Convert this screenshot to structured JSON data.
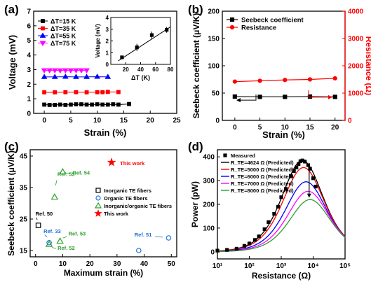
{
  "panel_labels": [
    "(a)",
    "(b)",
    "(c)",
    "(d)"
  ],
  "chart_data": [
    {
      "panel": "(a)",
      "type": "scatter",
      "xlabel": "Strain (%)",
      "ylabel": "Voltage (mV)",
      "xlim": [
        -2,
        25
      ],
      "ylim": [
        0,
        7
      ],
      "xticks": [
        0,
        5,
        10,
        15,
        20,
        25
      ],
      "yticks": [
        0,
        1,
        2,
        3,
        4,
        5,
        6,
        7
      ],
      "legend_position": "upper-left",
      "series": [
        {
          "name": "ΔT=15 K",
          "color": "#000000",
          "marker": "square",
          "x": [
            0,
            1,
            2,
            3,
            4,
            5,
            6,
            7,
            8,
            9,
            10,
            11,
            12,
            13,
            14,
            16
          ],
          "y": [
            0.6,
            0.58,
            0.58,
            0.6,
            0.58,
            0.6,
            0.62,
            0.62,
            0.6,
            0.6,
            0.62,
            0.6,
            0.6,
            0.62,
            0.6,
            0.64
          ]
        },
        {
          "name": "ΔT=35 K",
          "color": "#ff0000",
          "marker": "square",
          "x": [
            0,
            2,
            4,
            6,
            8,
            10,
            11,
            12,
            14
          ],
          "y": [
            1.44,
            1.44,
            1.45,
            1.45,
            1.44,
            1.45,
            1.45,
            1.47,
            1.46
          ]
        },
        {
          "name": "ΔT=55 K",
          "color": "#0000ff",
          "marker": "triangle",
          "x": [
            0,
            2,
            4,
            6,
            8,
            10,
            12
          ],
          "y": [
            2.5,
            2.5,
            2.51,
            2.5,
            2.5,
            2.51,
            2.5
          ]
        },
        {
          "name": "ΔT=75 K",
          "color": "#ff00ff",
          "marker": "triangle-down",
          "x": [
            0,
            1,
            2,
            3,
            4,
            5,
            6,
            7,
            8
          ],
          "y": [
            2.95,
            2.95,
            2.95,
            2.94,
            2.95,
            2.95,
            2.95,
            2.95,
            2.95
          ]
        }
      ],
      "inset": {
        "xlabel": "ΔT (K)",
        "ylabel": "Voltage (mV)",
        "xlim": [
          0,
          80
        ],
        "ylim": [
          0,
          4
        ],
        "xticks": [
          20,
          40,
          60,
          80
        ],
        "yticks": [
          0,
          1,
          2,
          3,
          4
        ],
        "x": [
          15,
          35,
          55,
          75
        ],
        "y": [
          0.6,
          1.45,
          2.5,
          2.95
        ],
        "err": [
          0.1,
          0.3,
          0.3,
          0.25
        ],
        "fit": {
          "x": [
            10,
            80
          ],
          "y": [
            0.3,
            3.2
          ]
        }
      }
    },
    {
      "panel": "(b)",
      "type": "line",
      "xlabel": "Strain (%)",
      "ylabel": "Seebeck coefficient (μV/K)",
      "ylabel_right": "Resistance (Ω)",
      "xlim": [
        -2.5,
        22
      ],
      "ylim": [
        0,
        200
      ],
      "ylim_right": [
        0,
        4000
      ],
      "xticks": [
        0,
        5,
        10,
        15,
        20
      ],
      "yticks": [
        0,
        50,
        100,
        150,
        200
      ],
      "yticks_right": [
        0,
        1000,
        2000,
        3000,
        4000
      ],
      "legend_position": "top-left",
      "series": [
        {
          "name": "Seebeck coefficient",
          "axis": "left",
          "color": "#000000",
          "marker": "square",
          "x": [
            0,
            5,
            10,
            15,
            20
          ],
          "y": [
            43.5,
            43,
            43,
            43.5,
            43
          ]
        },
        {
          "name": "Resistance",
          "axis": "right",
          "color": "#ff0000",
          "marker": "circle",
          "x": [
            0,
            5,
            10,
            15,
            20
          ],
          "y": [
            1420,
            1450,
            1480,
            1500,
            1540
          ]
        }
      ]
    },
    {
      "panel": "(c)",
      "type": "scatter",
      "title": "This work",
      "xlabel": "Maximum strain (%)",
      "ylabel": "Seebeck coefficient (μV/K)",
      "xlim": [
        -2,
        52
      ],
      "ylim": [
        13,
        47
      ],
      "xticks": [
        0,
        10,
        20,
        30,
        40,
        50
      ],
      "yticks": [
        15,
        25,
        35,
        45
      ],
      "legend_position": "center-right",
      "legend": [
        {
          "name": "Inorganic TE fibers",
          "color": "#000000",
          "marker": "square"
        },
        {
          "name": "Organic TE fibers",
          "color": "#1f6fd6",
          "marker": "circle"
        },
        {
          "name": "Inorganic/organic TE fibers",
          "color": "#2ca02c",
          "marker": "triangle"
        },
        {
          "name": "This work",
          "color": "#ff0000",
          "marker": "star"
        }
      ],
      "points": [
        {
          "label": "Ref. 50",
          "x": 1,
          "y": 23,
          "marker": "square",
          "color": "#000000"
        },
        {
          "label": "Ref. 33",
          "x": 5,
          "y": 17.5,
          "marker": "circle",
          "color": "#1f6fd6"
        },
        {
          "label": "Ref. 51",
          "x": 49,
          "y": 19,
          "marker": "circle",
          "color": "#1f6fd6"
        },
        {
          "label": "",
          "x": 38,
          "y": 15,
          "marker": "circle",
          "color": "#1f6fd6"
        },
        {
          "label": "Ref. 55",
          "x": 7,
          "y": 32,
          "marker": "triangle",
          "color": "#2ca02c"
        },
        {
          "label": "Ref. 54",
          "x": 10,
          "y": 40,
          "marker": "triangle",
          "color": "#2ca02c"
        },
        {
          "label": "Ref. 53",
          "x": 9,
          "y": 18,
          "marker": "triangle",
          "color": "#2ca02c"
        },
        {
          "label": "Ref. 52",
          "x": 5,
          "y": 17,
          "marker": "triangle",
          "color": "#2ca02c"
        },
        {
          "label": "This work",
          "x": 28,
          "y": 43,
          "marker": "star",
          "color": "#ff0000"
        }
      ]
    },
    {
      "panel": "(d)",
      "type": "line",
      "xlabel": "Resistance (Ω)",
      "ylabel": "Power (pW)",
      "xscale": "log",
      "xlim": [
        10,
        100000
      ],
      "ylim": [
        -30,
        430
      ],
      "xtick_labels": [
        "10¹",
        "10²",
        "10³",
        "10⁴",
        "10⁵"
      ],
      "yticks": [
        0,
        100,
        200,
        300,
        400
      ],
      "legend_position": "top-left",
      "measured": {
        "name": "Measured",
        "color": "#000000",
        "marker": "square",
        "x": [
          10,
          20,
          40,
          70,
          100,
          150,
          200,
          300,
          400,
          600,
          800,
          1000,
          1400,
          2000,
          2500,
          3000,
          3500,
          4000,
          4624,
          5500,
          7000,
          8000,
          10000,
          12000
        ],
        "y": [
          5,
          8,
          13,
          25,
          35,
          50,
          65,
          95,
          125,
          160,
          190,
          230,
          265,
          320,
          340,
          355,
          370,
          382,
          385,
          380,
          365,
          350,
          310,
          275
        ]
      },
      "series": [
        {
          "name": "R_TE=4624 Ω (Predicted)",
          "R": 4624,
          "peak": 385,
          "color": "#000000"
        },
        {
          "name": "R_TE=5000 Ω (Predicted)",
          "R": 5000,
          "peak": 355,
          "color": "#ff0000"
        },
        {
          "name": "R_TE=6000 Ω (Predicted)",
          "R": 6000,
          "peak": 295,
          "color": "#0000ff"
        },
        {
          "name": "R_TE=7000 Ω (Predicted)",
          "R": 7000,
          "peak": 255,
          "color": "#ff00ff"
        },
        {
          "name": "R_TE=8000 Ω (Predicted)",
          "R": 8000,
          "peak": 220,
          "color": "#2ca02c"
        }
      ]
    }
  ]
}
